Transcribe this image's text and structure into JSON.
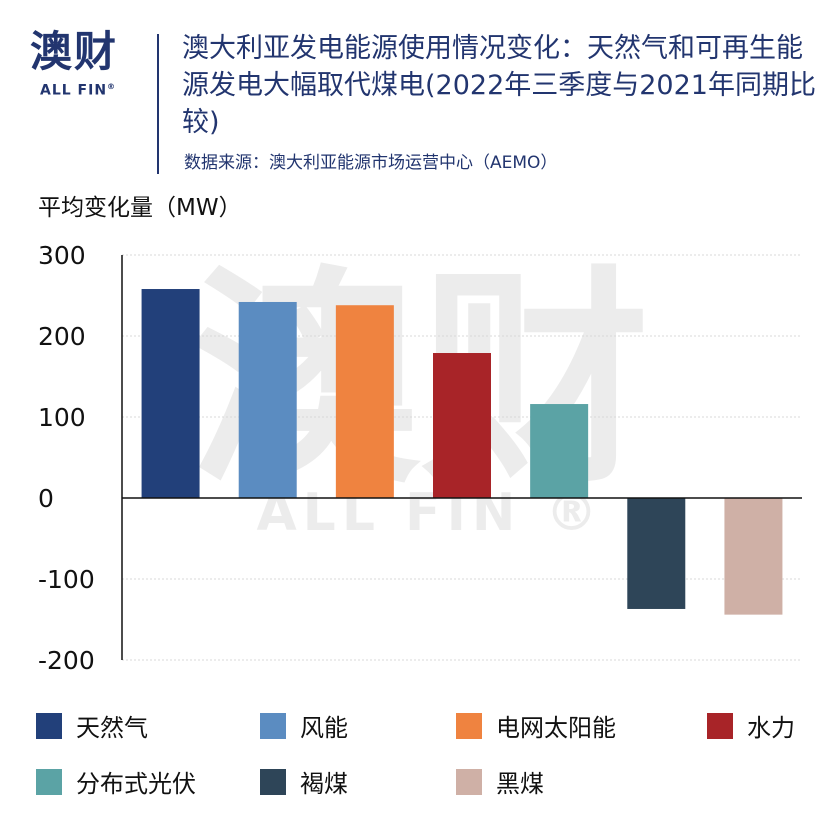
{
  "logo": {
    "main": "澳财",
    "sub": "ALL FIN",
    "reg": "®"
  },
  "title": "澳大利亚发电能源使用情况变化：天然气和可再生能源发电大幅取代煤电(2022年三季度与2021年同期比较)",
  "source": "数据来源：澳大利亚能源市场运营中心（AEMO）",
  "watermark": {
    "main": "澳财",
    "sub": "ALL FIN ®"
  },
  "chart_data": {
    "type": "bar",
    "title": "澳大利亚发电能源使用情况变化：天然气和可再生能源发电大幅取代煤电(2022年三季度与2021年同期比较)",
    "ylabel": "平均变化量（MW）",
    "xlabel": "",
    "ylim": [
      -200,
      300
    ],
    "yticks": [
      300,
      200,
      100,
      0,
      -100,
      -200
    ],
    "grid": true,
    "legend_position": "bottom",
    "categories": [
      "天然气",
      "风能",
      "电网太阳能",
      "水力",
      "分布式光伏",
      "褐煤",
      "黑煤"
    ],
    "values": [
      258,
      242,
      238,
      179,
      116,
      -137,
      -144
    ],
    "colors": [
      "#22407a",
      "#5b8cc1",
      "#ef8340",
      "#a82428",
      "#5ba3a5",
      "#2e4558",
      "#cfb0a6"
    ]
  }
}
